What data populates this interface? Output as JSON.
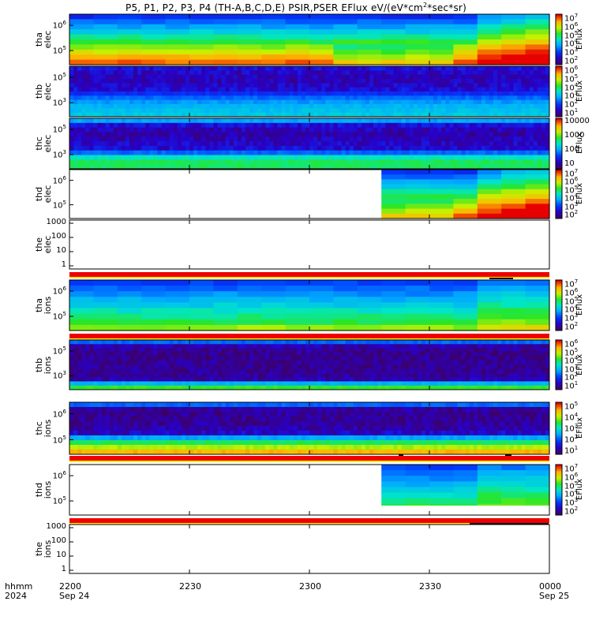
{
  "title_html": "P5, P1, P2, P3, P4 (TH&#8209;A,B,C,D,E) PSIR,PSER EFlux eV/(eV*cm<sup>2</sup>*sec*sr)",
  "x_axis": {
    "label_line1": "hhmm",
    "label_line2": "2024",
    "ticks": [
      "2200",
      "2230",
      "2300",
      "2330",
      "0000"
    ],
    "dates": [
      "Sep 24",
      "",
      "",
      "",
      "Sep 25"
    ]
  },
  "colorbar_title": "EFlux",
  "chart_data": [
    {
      "type": "heatmap",
      "panel": "tha elec",
      "ylabel": [
        "tha",
        "elec"
      ],
      "yticks": [
        "10^6",
        "10^5"
      ],
      "colorbar": [
        "10^7",
        "10^6",
        "10^5",
        "10^4",
        "10^3",
        "10^2"
      ],
      "rows_top_to_bottom": [
        "low",
        "low",
        "low-mid",
        "mid",
        "mid-high",
        "high",
        "high"
      ],
      "note": "late-time enhancement after 2345"
    },
    {
      "type": "heatmap",
      "panel": "thb elec",
      "ylabel": [
        "thb",
        "elec"
      ],
      "yticks": [
        "10^5",
        "10^3"
      ],
      "colorbar": [
        "10^6",
        "10^5",
        "10^4",
        "10^3",
        "10^2",
        "10^1"
      ]
    },
    {
      "type": "heatmap",
      "panel": "thc elec",
      "ylabel": [
        "thc",
        "elec"
      ],
      "yticks": [
        "10^5",
        "10^3"
      ],
      "colorbar": [
        "10000",
        "1000",
        "100",
        "10"
      ]
    },
    {
      "type": "heatmap",
      "panel": "thd elec",
      "ylabel": [
        "thd",
        "elec"
      ],
      "yticks": [
        "10^6",
        "10^5"
      ],
      "colorbar": [
        "10^7",
        "10^6",
        "10^5",
        "10^4",
        "10^3",
        "10^2"
      ],
      "note": "data only after ~2318"
    },
    {
      "type": "heatmap",
      "panel": "the elec",
      "ylabel": [
        "the",
        "elec"
      ],
      "yticks": [
        "1000",
        "100",
        "10",
        "1"
      ],
      "note": "no data"
    },
    {
      "type": "heatmap",
      "panel": "tha ions",
      "ylabel": [
        "tha",
        "ions"
      ],
      "yticks": [
        "10^6",
        "10^5"
      ],
      "colorbar": [
        "10^7",
        "10^6",
        "10^5",
        "10^4",
        "10^3",
        "10^2"
      ]
    },
    {
      "type": "heatmap",
      "panel": "thb ions",
      "ylabel": [
        "thb",
        "ions"
      ],
      "yticks": [
        "10^5",
        "10^3"
      ],
      "colorbar": [
        "10^6",
        "10^5",
        "10^4",
        "10^3",
        "10^2",
        "10^1"
      ]
    },
    {
      "type": "heatmap",
      "panel": "thc ions",
      "ylabel": [
        "thc",
        "ions"
      ],
      "yticks": [
        "10^6",
        "10^5"
      ],
      "colorbar": [
        "10^5",
        "10^4",
        "10^3",
        "10^2",
        "10^1"
      ]
    },
    {
      "type": "heatmap",
      "panel": "thd ions",
      "ylabel": [
        "thd",
        "ions"
      ],
      "yticks": [
        "10^6",
        "10^5"
      ],
      "colorbar": [
        "10^7",
        "10^6",
        "10^5",
        "10^4",
        "10^3",
        "10^2"
      ],
      "note": "data only after ~2318"
    },
    {
      "type": "heatmap",
      "panel": "the ions",
      "ylabel": [
        "the",
        "ions"
      ],
      "yticks": [
        "1000",
        "100",
        "10",
        "1"
      ],
      "note": "no data"
    }
  ]
}
